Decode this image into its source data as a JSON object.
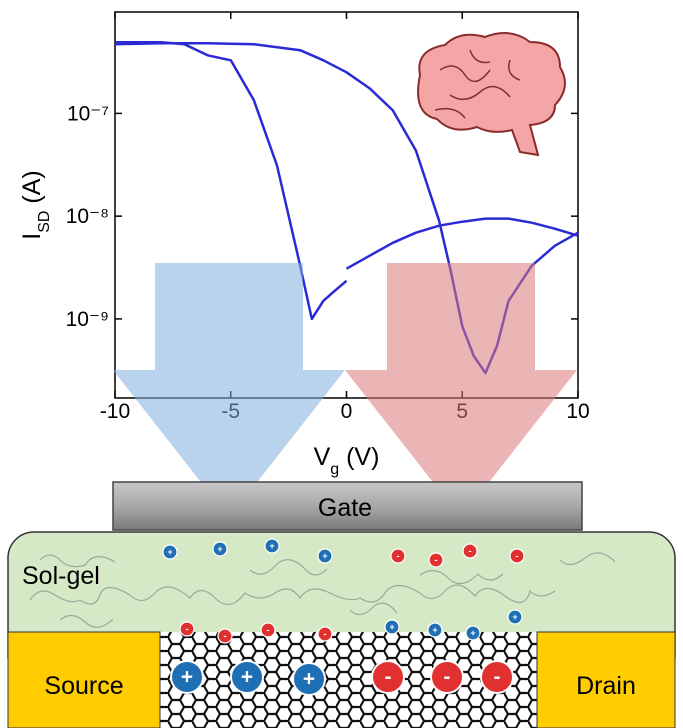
{
  "chart_data": {
    "type": "line",
    "xlabel": {
      "main": "V",
      "sub": "g",
      "tail": " (V)"
    },
    "ylabel": {
      "main": "I",
      "sub": "SD",
      "tail": " (A)"
    },
    "xlim": [
      -10,
      10
    ],
    "xticks": [
      -10,
      -5,
      0,
      5,
      10
    ],
    "ylim": [
      1.7e-10,
      9.7e-07
    ],
    "log_y": true,
    "yticks": [
      {
        "value": 1e-09,
        "label": "10⁻⁹"
      },
      {
        "value": 1e-08,
        "label": "10⁻⁸"
      },
      {
        "value": 1e-07,
        "label": "10⁻⁷"
      }
    ],
    "series": [
      {
        "color": "#2a2ad6",
        "x": [
          -10,
          -8,
          -7,
          -6,
          -5,
          -4,
          -3,
          -2,
          -1.5,
          -1,
          -0.5,
          0,
          0,
          0,
          1,
          2,
          3,
          4,
          5,
          6,
          7,
          8,
          9,
          10
        ],
        "values": [
          4.93e-07,
          4.93e-07,
          4.71e-07,
          3.68e-07,
          3.29e-07,
          1.34e-07,
          3.11e-08,
          3.29e-09,
          1e-09,
          1.5e-09,
          1.88e-09,
          2.35e-09,
          null,
          3.08e-09,
          4.12e-09,
          5.51e-09,
          6.9e-09,
          8.07e-09,
          8.83e-09,
          9.46e-09,
          9.46e-09,
          8.63e-09,
          7.55e-09,
          6.46e-09
        ]
      },
      {
        "color": "#2a2ad6",
        "x": [
          -10,
          -8,
          -6,
          -4,
          -2,
          -1,
          0,
          1,
          2,
          3,
          4,
          4.5,
          5,
          5.5,
          6,
          6.5,
          7,
          8,
          9,
          10
        ],
        "values": [
          4.71e-07,
          4.82e-07,
          4.82e-07,
          4.71e-07,
          4.12e-07,
          3.29e-07,
          2.51e-07,
          1.75e-07,
          1.07e-07,
          4.35e-08,
          9.04e-09,
          2.94e-09,
          8.5e-10,
          4.36e-10,
          2.97e-10,
          5.46e-10,
          1.5e-09,
          3.29e-09,
          5.15e-09,
          6.9e-09
        ]
      }
    ]
  },
  "diagram": {
    "gate": "Gate",
    "dielectric": "Sol-gel",
    "source": "Source",
    "drain": "Drain",
    "ion_signs": {
      "positive": "+",
      "negative": "-"
    }
  }
}
